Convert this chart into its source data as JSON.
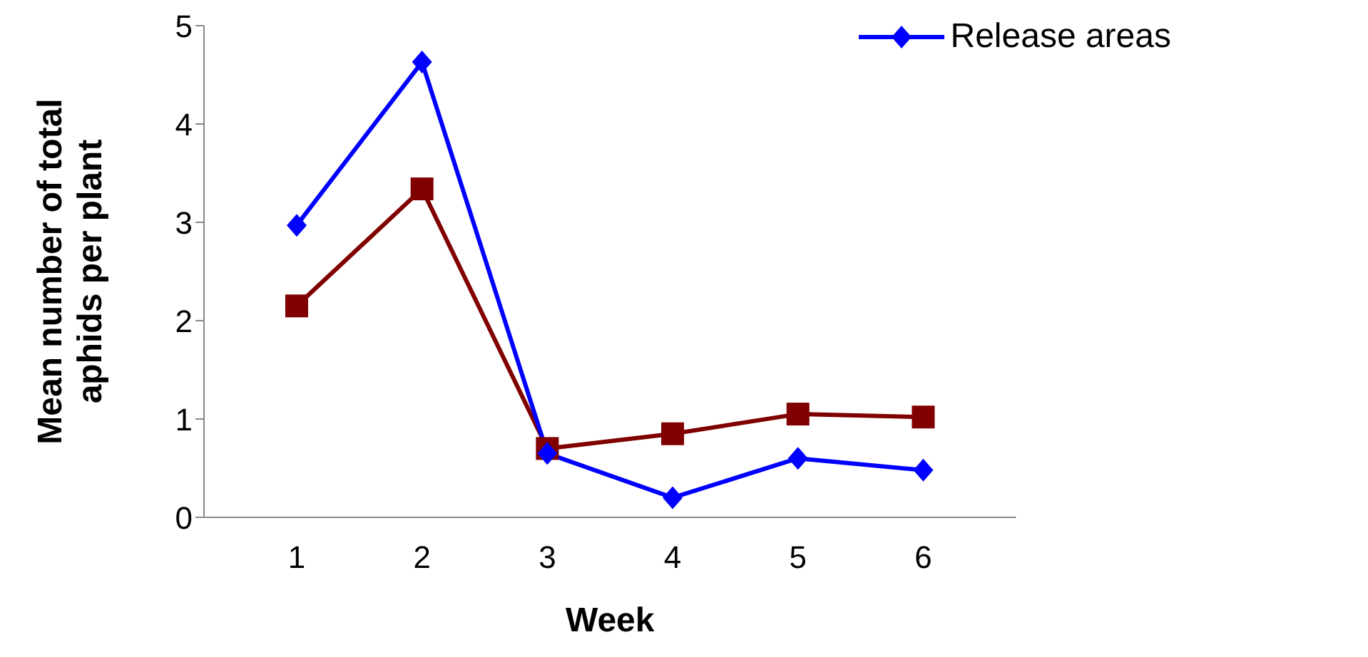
{
  "chart_data": {
    "type": "line",
    "xlabel": "Week",
    "ylabel": "Mean number of total aphids per plant",
    "categories": [
      "1",
      "2",
      "3",
      "4",
      "5",
      "6"
    ],
    "series": [
      {
        "name": "Release areas",
        "color": "#0000ff",
        "marker": "diamond",
        "values": [
          2.97,
          4.63,
          0.65,
          0.2,
          0.6,
          0.48
        ]
      },
      {
        "color": "#800000",
        "marker": "square",
        "values": [
          2.15,
          3.34,
          0.7,
          0.85,
          1.05,
          1.02
        ]
      }
    ],
    "ylim": [
      0,
      5
    ],
    "yticks": [
      0,
      1,
      2,
      3,
      4,
      5
    ],
    "grid": false,
    "legend": "top right",
    "line_style": "solid"
  }
}
